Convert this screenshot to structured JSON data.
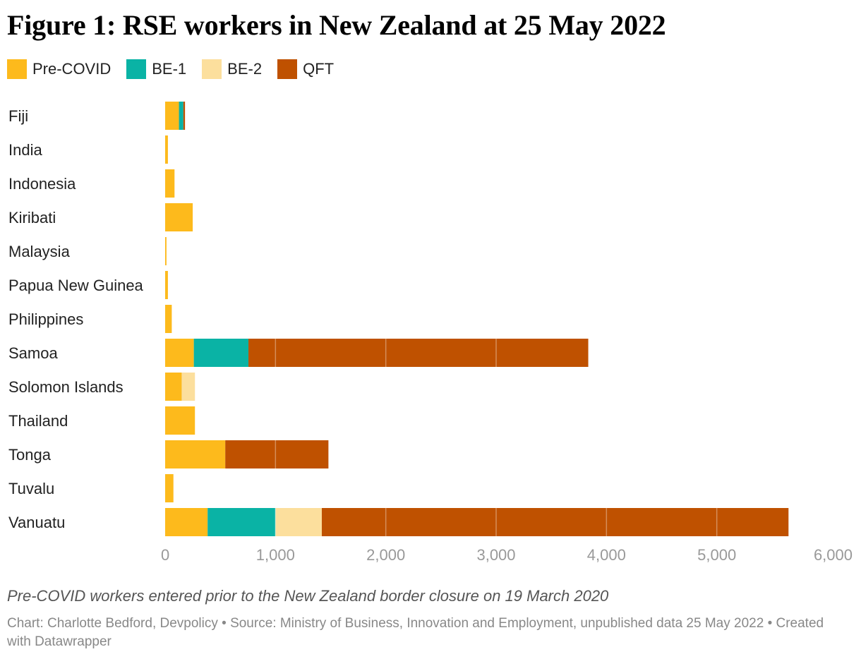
{
  "title": "Figure 1: RSE workers in New Zealand at 25 May 2022",
  "caption": "Pre-COVID workers entered prior to the New Zealand border closure on 19 March 2020",
  "credit": "Chart: Charlotte Bedford, Devpolicy • Source: Ministry of Business, Innovation and Employment, unpublished data 25 May 2022 • Created with Datawrapper",
  "colors": {
    "pre_covid": "#FDBA1C",
    "be1": "#0AB3A5",
    "be2": "#FCDF9D",
    "qft": "#BF5100",
    "axis_text": "#999999"
  },
  "chart_data": {
    "type": "bar",
    "orientation": "horizontal",
    "stacked": true,
    "legend_position": "top-left",
    "grid": false,
    "xlim": [
      0,
      6000
    ],
    "x_ticks": [
      "0",
      "1,000",
      "2,000",
      "3,000",
      "4,000",
      "5,000",
      "6,000"
    ],
    "categories": [
      "Fiji",
      "India",
      "Indonesia",
      "Kiribati",
      "Malaysia",
      "Papua New Guinea",
      "Philippines",
      "Samoa",
      "Solomon Islands",
      "Thailand",
      "Tonga",
      "Tuvalu",
      "Vanuatu"
    ],
    "series": [
      {
        "name": "Pre-COVID",
        "values": [
          125,
          25,
          85,
          250,
          12,
          25,
          60,
          260,
          150,
          270,
          545,
          75,
          385
        ]
      },
      {
        "name": "BE-1",
        "values": [
          40,
          0,
          0,
          0,
          0,
          0,
          0,
          495,
          0,
          0,
          0,
          0,
          615
        ]
      },
      {
        "name": "BE-2",
        "values": [
          0,
          0,
          0,
          0,
          0,
          0,
          0,
          0,
          120,
          0,
          0,
          0,
          420
        ]
      },
      {
        "name": "QFT",
        "values": [
          15,
          0,
          0,
          0,
          0,
          0,
          0,
          3080,
          0,
          0,
          935,
          0,
          4230
        ]
      }
    ]
  }
}
